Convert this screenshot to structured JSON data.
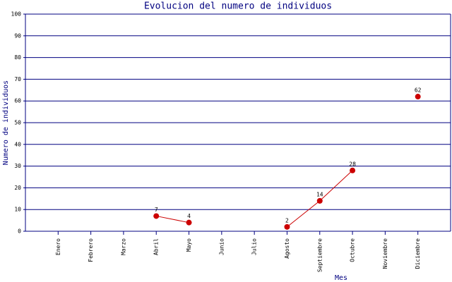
{
  "chart_data": {
    "type": "line",
    "title": "Evolucion del numero de individuos",
    "x_label": "Mes",
    "y_label": "Numero de individuos",
    "categories": [
      "Enero",
      "Febrero",
      "Marzo",
      "Abril",
      "Mayo",
      "Junio",
      "Julio",
      "Agosto",
      "Septiembre",
      "Octubre",
      "Noviembre",
      "Diciembre"
    ],
    "values": [
      null,
      null,
      null,
      7,
      4,
      null,
      null,
      2,
      14,
      28,
      null,
      62
    ],
    "color": "#cc0000",
    "ylim": [
      0,
      100
    ],
    "yticks": [
      0,
      10,
      20,
      30,
      40,
      50,
      60,
      70,
      80,
      90,
      100
    ],
    "grid": true
  }
}
